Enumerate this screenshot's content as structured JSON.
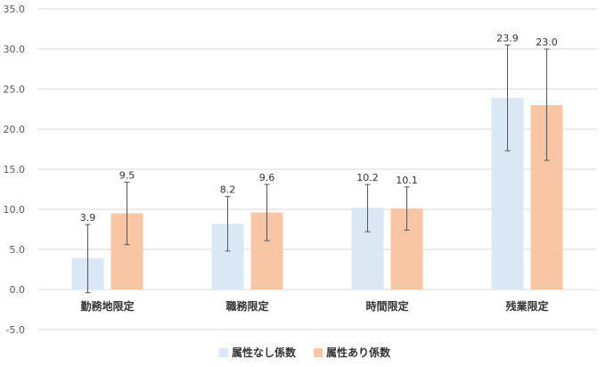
{
  "chart_data": {
    "type": "bar",
    "categories": [
      "勤務地限定",
      "職務限定",
      "時間限定",
      "残業限定"
    ],
    "series": [
      {
        "name": "属性なし係数",
        "color": "#dae8f5",
        "values": [
          3.9,
          8.2,
          10.2,
          23.9
        ],
        "labels": [
          "3.9",
          "8.2",
          "10.2",
          "23.9"
        ],
        "error_low": [
          -0.4,
          4.8,
          7.2,
          17.3
        ],
        "error_high": [
          8.1,
          11.6,
          13.1,
          30.5
        ]
      },
      {
        "name": "属性あり係数",
        "color": "#f8c6a4",
        "values": [
          9.5,
          9.6,
          10.1,
          23.0
        ],
        "labels": [
          "9.5",
          "9.6",
          "10.1",
          "23.0"
        ],
        "error_low": [
          5.6,
          6.1,
          7.4,
          16.1
        ],
        "error_high": [
          13.4,
          13.1,
          12.8,
          30.0
        ]
      }
    ],
    "ylim": [
      -5,
      35
    ],
    "yticks": [
      "-5.0",
      "0.0",
      "5.0",
      "10.0",
      "15.0",
      "20.0",
      "25.0",
      "30.0",
      "35.0"
    ],
    "grid": true,
    "legend_position": "bottom"
  }
}
